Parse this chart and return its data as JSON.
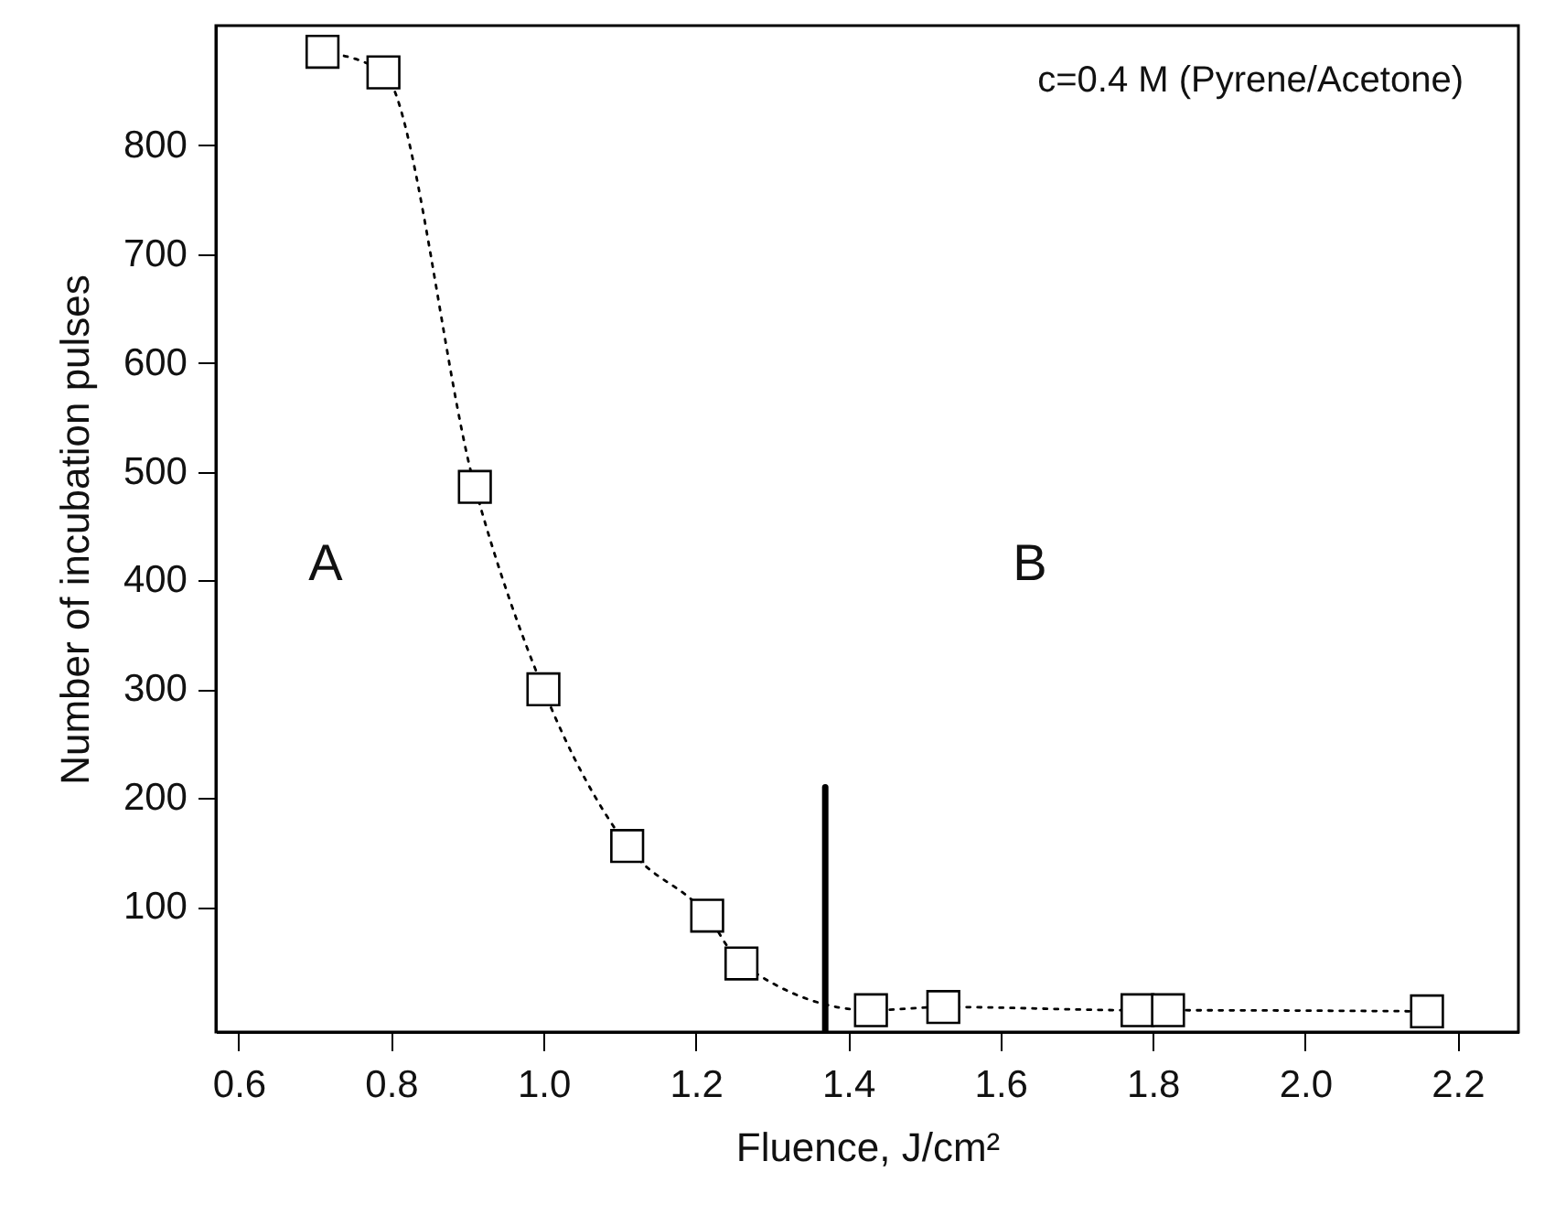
{
  "chart_data": {
    "type": "line",
    "xlabel": "Fluence, J/cm²",
    "ylabel": "Number of incubation pulses",
    "annotations": [
      "c=0.4 M (Pyrene/Acetone)",
      "A",
      "B"
    ],
    "xlim": [
      0.57,
      2.28
    ],
    "xticks": [
      {
        "value": 0.6,
        "label": "0.6"
      },
      {
        "value": 0.8,
        "label": "0.8"
      },
      {
        "value": 1.0,
        "label": "1.0"
      },
      {
        "value": 1.2,
        "label": "1.2"
      },
      {
        "value": 1.4,
        "label": "1.4"
      },
      {
        "value": 1.6,
        "label": "1.6"
      },
      {
        "value": 1.8,
        "label": "1.8"
      },
      {
        "value": 2.0,
        "label": "2.0"
      },
      {
        "value": 2.2,
        "label": "2.2"
      }
    ],
    "ylim": [
      -15,
      910
    ],
    "yticks": [
      100,
      200,
      300,
      400,
      500,
      600,
      700,
      800
    ],
    "grid": false,
    "series": [
      {
        "color": "#000000",
        "marker": "square",
        "line_style": "dotted",
        "x": [
          0.71,
          0.79,
          0.91,
          1.0,
          1.11,
          1.215,
          1.26,
          1.43,
          1.525,
          1.78,
          1.82,
          2.16
        ],
        "values": [
          886,
          867,
          486,
          300,
          156,
          92,
          48,
          5,
          8,
          5,
          5,
          4
        ]
      },
      {
        "color": "#000000",
        "marker": "none",
        "line_style": "solid",
        "x": [
          1.37,
          1.37
        ],
        "values": [
          -15,
          210
        ]
      }
    ]
  }
}
